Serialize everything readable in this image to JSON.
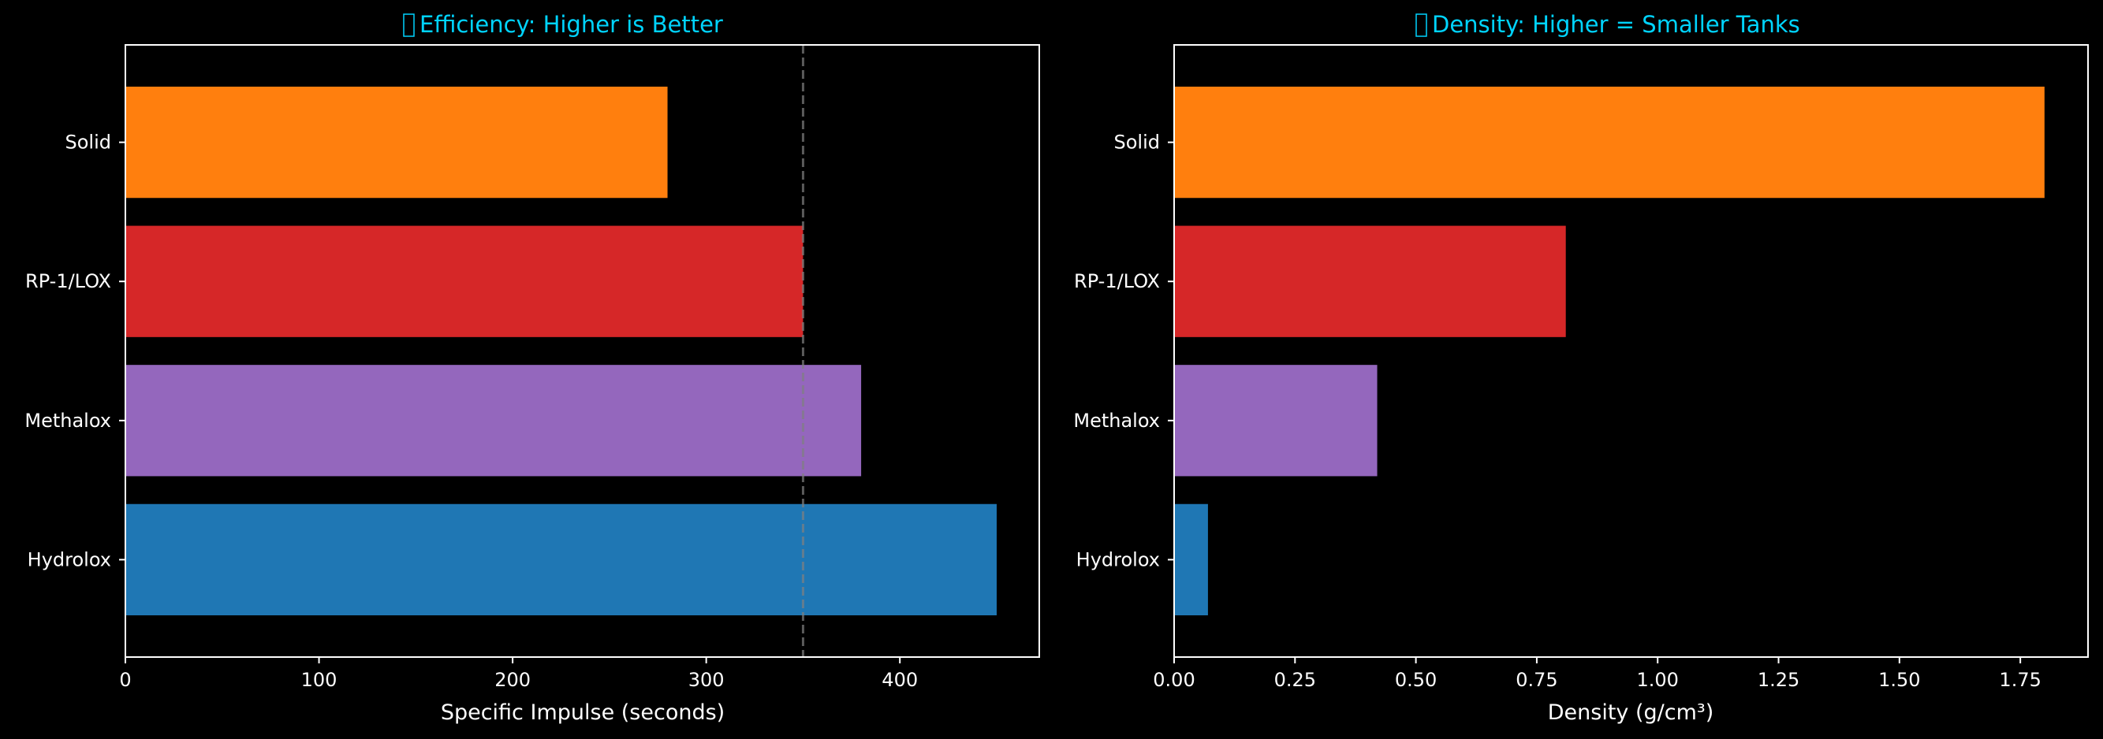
{
  "chart_data": [
    {
      "type": "bar",
      "orientation": "horizontal",
      "title_glyph": "tofu-box",
      "title": "Efficiency: Higher is Better",
      "xlabel": "Specific Impulse (seconds)",
      "ylabel": "",
      "categories": [
        "Solid",
        "RP-1/LOX",
        "Methalox",
        "Hydrolox"
      ],
      "values": [
        280,
        350,
        380,
        450
      ],
      "colors": [
        "#ff7f0e",
        "#d62728",
        "#9467bd",
        "#1f77b4"
      ],
      "xlim": [
        0,
        472
      ],
      "xticks": [
        0,
        100,
        200,
        300,
        400
      ],
      "xtick_labels": [
        "0",
        "100",
        "200",
        "300",
        "400"
      ],
      "reference_line": {
        "x": 350,
        "style": "dashed",
        "color": "#808080"
      },
      "grid": false
    },
    {
      "type": "bar",
      "orientation": "horizontal",
      "title_glyph": "tofu-box",
      "title": "Density: Higher = Smaller Tanks",
      "xlabel": "Density (g/cm³)",
      "ylabel": "",
      "categories": [
        "Solid",
        "RP-1/LOX",
        "Methalox",
        "Hydrolox"
      ],
      "values": [
        1.8,
        0.81,
        0.42,
        0.07
      ],
      "colors": [
        "#ff7f0e",
        "#d62728",
        "#9467bd",
        "#1f77b4"
      ],
      "xlim": [
        0,
        1.89
      ],
      "xticks": [
        0,
        0.25,
        0.5,
        0.75,
        1.0,
        1.25,
        1.5,
        1.75
      ],
      "xtick_labels": [
        "0.00",
        "0.25",
        "0.50",
        "0.75",
        "1.00",
        "1.25",
        "1.50",
        "1.75"
      ],
      "grid": false
    }
  ],
  "style": {
    "background": "#000000",
    "title_color": "#00d4ff",
    "axis_color": "#ffffff"
  }
}
